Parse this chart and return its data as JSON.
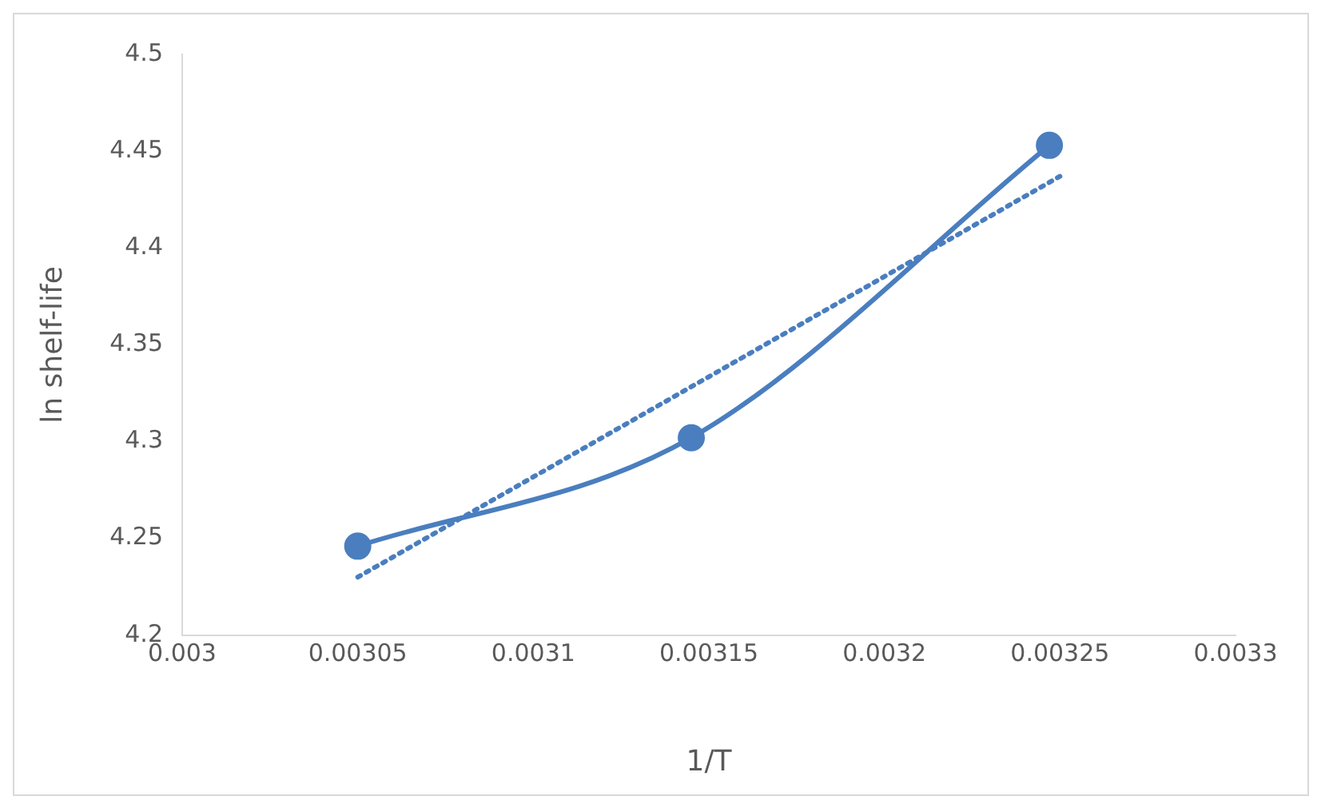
{
  "chart_data": {
    "type": "line",
    "xlabel": "1/T",
    "ylabel": "ln shelf-life",
    "xlim": [
      0.003,
      0.0033
    ],
    "xticks": [
      0.003,
      0.00305,
      0.0031,
      0.00315,
      0.0032,
      0.00325,
      0.0033
    ],
    "ylim": [
      4.2,
      4.5
    ],
    "yticks": [
      4.2,
      4.25,
      4.3,
      4.35,
      4.4,
      4.45,
      4.5
    ],
    "grid": false,
    "legend": false,
    "series": [
      {
        "color": "#4a7ebf",
        "x": [
          0.00305,
          0.003145,
          0.003247
        ],
        "values": [
          4.246,
          4.302,
          4.453
        ],
        "marker": "circle",
        "line_style": "solid"
      },
      {
        "color": "#4a7ebf",
        "x": [
          0.00305,
          0.00325
        ],
        "values": [
          4.23,
          4.437
        ],
        "marker": "none",
        "line_style": "dotted"
      }
    ]
  }
}
